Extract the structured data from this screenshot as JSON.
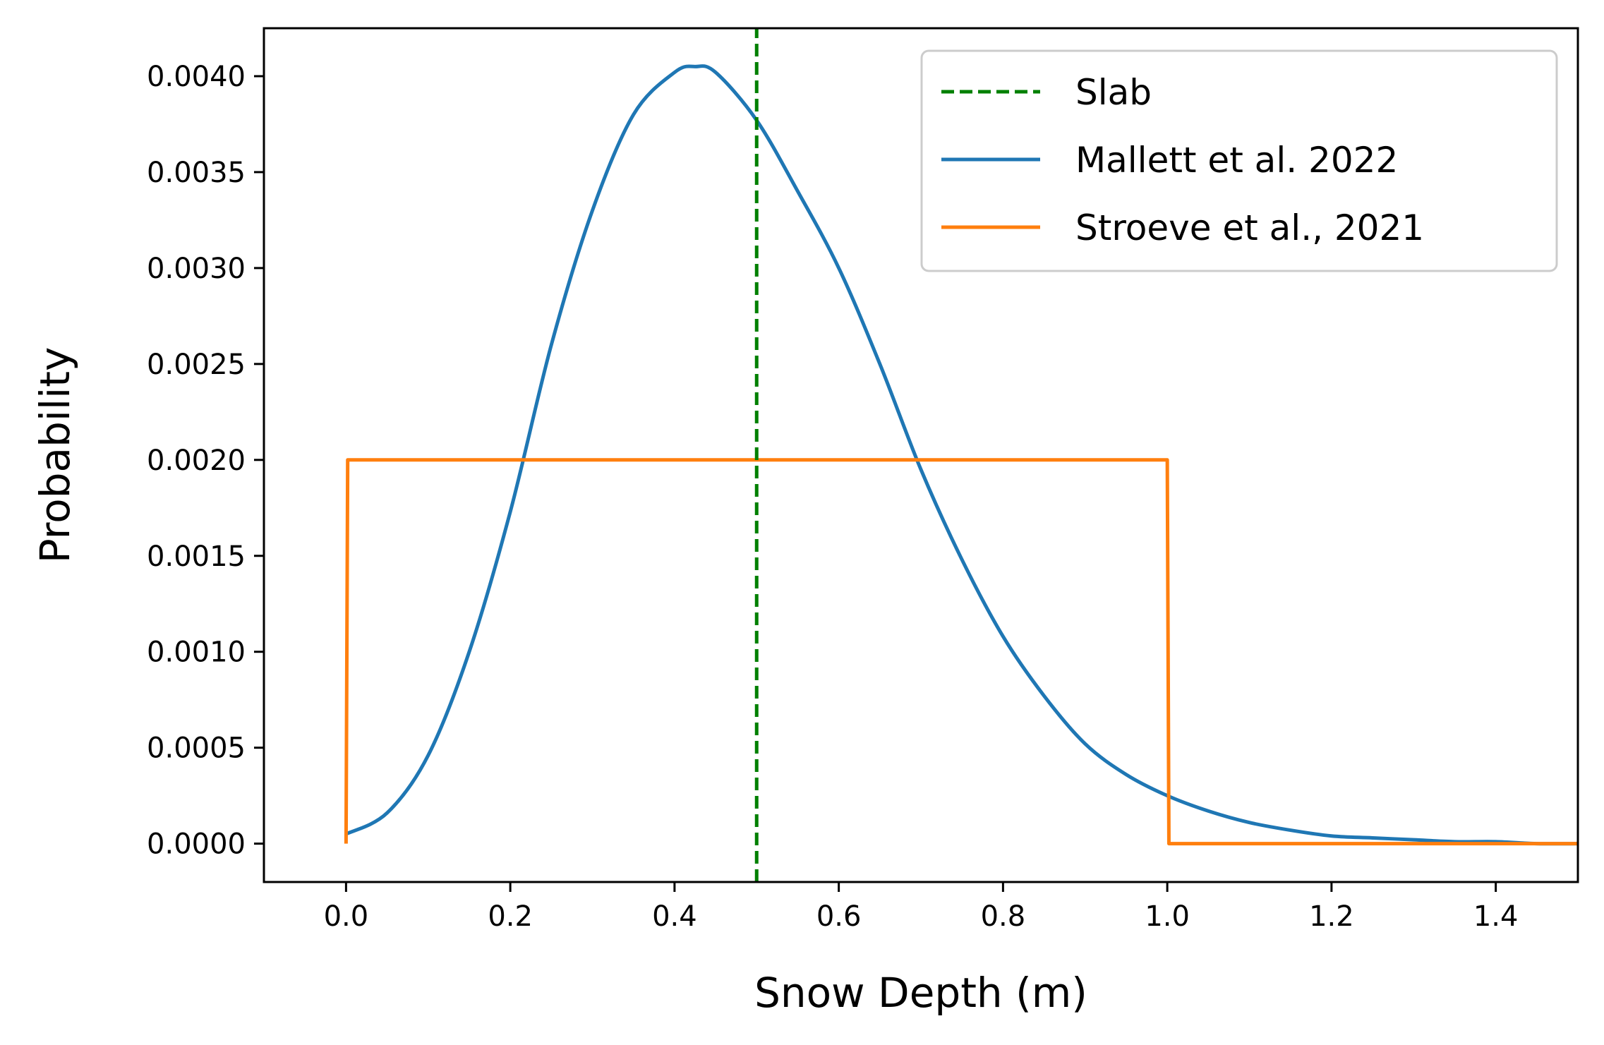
{
  "chart_data": {
    "type": "line",
    "title": "",
    "xlabel": "Snow Depth (m)",
    "ylabel": "Probability",
    "xlim": [
      -0.1,
      1.5
    ],
    "ylim": [
      -0.0002,
      0.00425
    ],
    "xticks": [
      0.0,
      0.2,
      0.4,
      0.6,
      0.8,
      1.0,
      1.2,
      1.4
    ],
    "xtick_labels": [
      "0.0",
      "0.2",
      "0.4",
      "0.6",
      "0.8",
      "1.0",
      "1.2",
      "1.4"
    ],
    "yticks": [
      0.0,
      0.0005,
      0.001,
      0.0015,
      0.002,
      0.0025,
      0.003,
      0.0035,
      0.004
    ],
    "ytick_labels": [
      "0.0000",
      "0.0005",
      "0.0010",
      "0.0015",
      "0.0020",
      "0.0025",
      "0.0030",
      "0.0035",
      "0.0040"
    ],
    "grid": false,
    "legend_position": "top-right",
    "series": [
      {
        "name": "Slab",
        "style": "dashed",
        "color": "#008000",
        "x": [
          0.5,
          0.5
        ],
        "y": [
          -0.0002,
          0.00425
        ]
      },
      {
        "name": "Mallett et al. 2022",
        "style": "solid",
        "color": "#1f77b4",
        "x": [
          0.0,
          0.05,
          0.1,
          0.15,
          0.2,
          0.25,
          0.3,
          0.35,
          0.4,
          0.425,
          0.45,
          0.5,
          0.55,
          0.6,
          0.65,
          0.7,
          0.75,
          0.8,
          0.85,
          0.9,
          0.95,
          1.0,
          1.05,
          1.1,
          1.15,
          1.2,
          1.25,
          1.3,
          1.35,
          1.4,
          1.45,
          1.5
        ],
        "y": [
          5e-05,
          0.00016,
          0.00046,
          0.001,
          0.00173,
          0.0026,
          0.0033,
          0.0038,
          0.00402,
          0.00405,
          0.00402,
          0.00377,
          0.0034,
          0.003,
          0.0025,
          0.00195,
          0.00148,
          0.00108,
          0.00077,
          0.00052,
          0.00036,
          0.00025,
          0.00017,
          0.00011,
          7e-05,
          4e-05,
          3e-05,
          2e-05,
          1e-05,
          1e-05,
          0.0,
          0.0
        ]
      },
      {
        "name": "Stroeve et al., 2021",
        "style": "solid",
        "color": "#ff7f0e",
        "x": [
          0.0,
          0.002,
          1.0,
          1.002,
          1.5
        ],
        "y": [
          0.0,
          0.002,
          0.002,
          0.0,
          0.0
        ]
      }
    ]
  }
}
